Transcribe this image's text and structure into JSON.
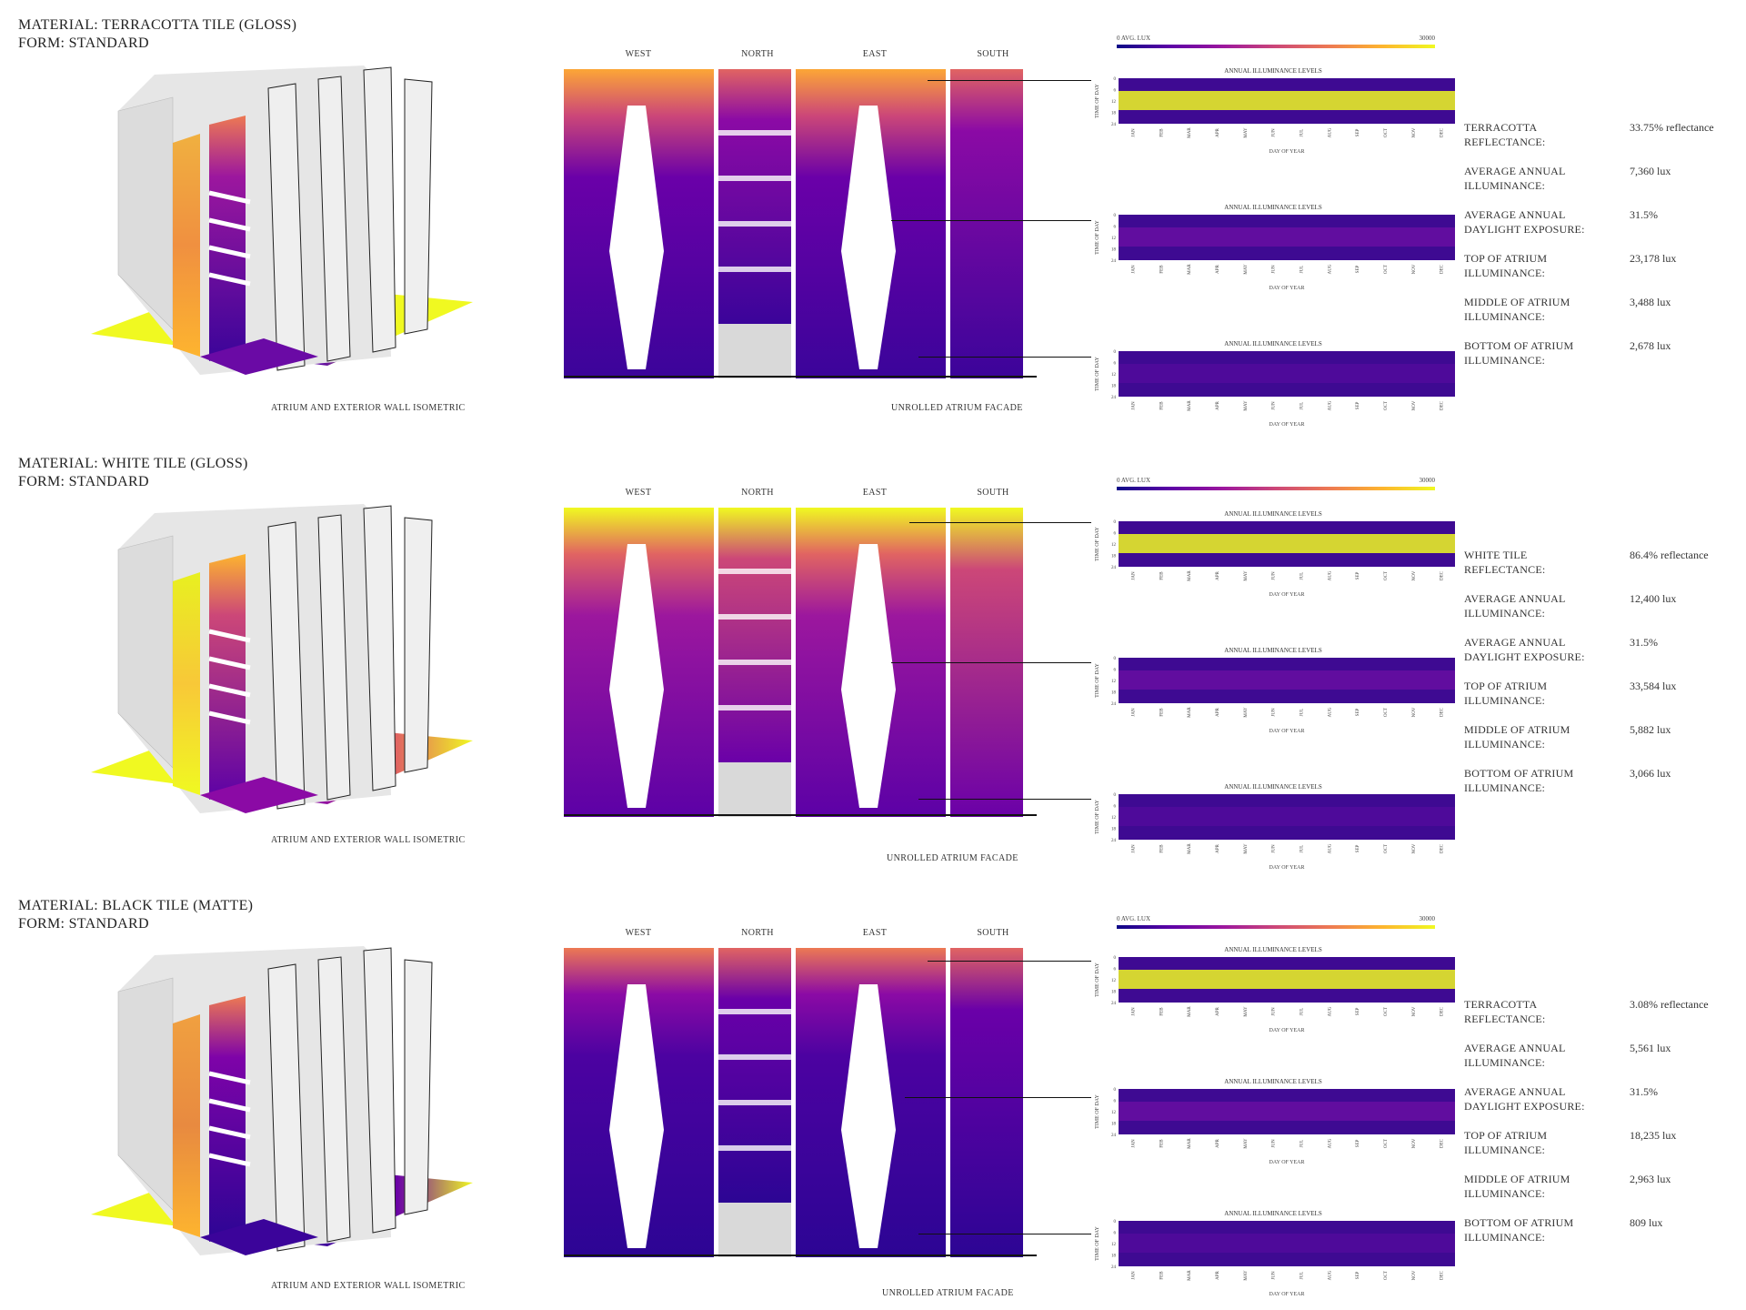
{
  "sections": [
    {
      "material": "MATERIAL: TERRACOTTA TILE (GLOSS)",
      "form": "FORM: STANDARD",
      "iso_caption": "ATRIUM AND EXTERIOR WALL ISOMETRIC",
      "facade_caption": "UNROLLED ATRIUM FACADE",
      "directions": [
        "WEST",
        "NORTH",
        "EAST",
        "SOUTH"
      ],
      "legend_low": "0 AVG. LUX",
      "legend_high": "30000",
      "heatmap_title": "ANNUAL ILLUMINANCE LEVELS",
      "heatmap_ylabel": "TIME OF DAY",
      "heatmap_xlabel": "DAY OF YEAR",
      "heatmap_yticks": [
        "0",
        "6",
        "12",
        "18",
        "24"
      ],
      "heatmap_xticks": [
        "JAN",
        "FEB",
        "MAR",
        "APR",
        "MAY",
        "JUN",
        "JUL",
        "AUG",
        "SEP",
        "OCT",
        "NOV",
        "DEC"
      ],
      "heatmap_levels": [
        "top",
        "middle",
        "bottom"
      ],
      "stats": [
        {
          "label": "TERRACOTTA REFLECTANCE:",
          "value": "33.75% reflectance"
        },
        {
          "label": "AVERAGE ANNUAL ILLUMINANCE:",
          "value": "7,360 lux"
        },
        {
          "label": "AVERAGE ANNUAL DAYLIGHT EXPOSURE:",
          "value": "31.5%"
        },
        {
          "label": "TOP OF ATRIUM ILLUMINANCE:",
          "value": "23,178 lux"
        },
        {
          "label": "MIDDLE OF ATRIUM ILLUMINANCE:",
          "value": "3,488 lux"
        },
        {
          "label": "BOTTOM OF ATRIUM ILLUMINANCE:",
          "value": "2,678 lux"
        }
      ]
    },
    {
      "material": "MATERIAL: WHITE TILE (GLOSS)",
      "form": "FORM: STANDARD",
      "iso_caption": "ATRIUM AND EXTERIOR WALL ISOMETRIC",
      "facade_caption": "UNROLLED ATRIUM FACADE",
      "directions": [
        "WEST",
        "NORTH",
        "EAST",
        "SOUTH"
      ],
      "legend_low": "0 AVG. LUX",
      "legend_high": "30000",
      "heatmap_title": "ANNUAL ILLUMINANCE LEVELS",
      "heatmap_ylabel": "TIME OF DAY",
      "heatmap_xlabel": "DAY OF YEAR",
      "heatmap_yticks": [
        "0",
        "6",
        "12",
        "18",
        "24"
      ],
      "heatmap_xticks": [
        "JAN",
        "FEB",
        "MAR",
        "APR",
        "MAY",
        "JUN",
        "JUL",
        "AUG",
        "SEP",
        "OCT",
        "NOV",
        "DEC"
      ],
      "heatmap_levels": [
        "top",
        "middle",
        "bottom"
      ],
      "stats": [
        {
          "label": "WHITE TILE REFLECTANCE:",
          "value": "86.4% reflectance"
        },
        {
          "label": "AVERAGE ANNUAL ILLUMINANCE:",
          "value": "12,400 lux"
        },
        {
          "label": "AVERAGE ANNUAL DAYLIGHT EXPOSURE:",
          "value": "31.5%"
        },
        {
          "label": "TOP OF ATRIUM ILLUMINANCE:",
          "value": "33,584 lux"
        },
        {
          "label": "MIDDLE OF ATRIUM ILLUMINANCE:",
          "value": "5,882 lux"
        },
        {
          "label": "BOTTOM OF ATRIUM ILLUMINANCE:",
          "value": "3,066 lux"
        }
      ]
    },
    {
      "material": "MATERIAL: BLACK TILE (MATTE)",
      "form": "FORM: STANDARD",
      "iso_caption": "ATRIUM AND EXTERIOR WALL ISOMETRIC",
      "facade_caption": "UNROLLED ATRIUM FACADE",
      "directions": [
        "WEST",
        "NORTH",
        "EAST",
        "SOUTH"
      ],
      "legend_low": "0 AVG. LUX",
      "legend_high": "30000",
      "heatmap_title": "ANNUAL ILLUMINANCE LEVELS",
      "heatmap_ylabel": "TIME OF DAY",
      "heatmap_xlabel": "DAY OF YEAR",
      "heatmap_yticks": [
        "0",
        "6",
        "12",
        "18",
        "24"
      ],
      "heatmap_xticks": [
        "JAN",
        "FEB",
        "MAR",
        "APR",
        "MAY",
        "JUN",
        "JUL",
        "AUG",
        "SEP",
        "OCT",
        "NOV",
        "DEC"
      ],
      "heatmap_levels": [
        "top",
        "middle",
        "bottom"
      ],
      "stats": [
        {
          "label": "TERRACOTTA REFLECTANCE:",
          "value": "3.08% reflectance"
        },
        {
          "label": "AVERAGE ANNUAL ILLUMINANCE:",
          "value": "5,561 lux"
        },
        {
          "label": "AVERAGE ANNUAL DAYLIGHT EXPOSURE:",
          "value": "31.5%"
        },
        {
          "label": "TOP OF ATRIUM ILLUMINANCE:",
          "value": "18,235 lux"
        },
        {
          "label": "MIDDLE OF ATRIUM ILLUMINANCE:",
          "value": "2,963 lux"
        },
        {
          "label": "BOTTOM OF ATRIUM ILLUMINANCE:",
          "value": "809 lux"
        }
      ]
    }
  ],
  "colors": {
    "low": "#1b0c8c",
    "mid": "#8b0aa5",
    "warm": "#e16462",
    "high": "#fca636",
    "peak": "#f0f921",
    "wall": "#e8e8e8",
    "line": "#111111"
  }
}
